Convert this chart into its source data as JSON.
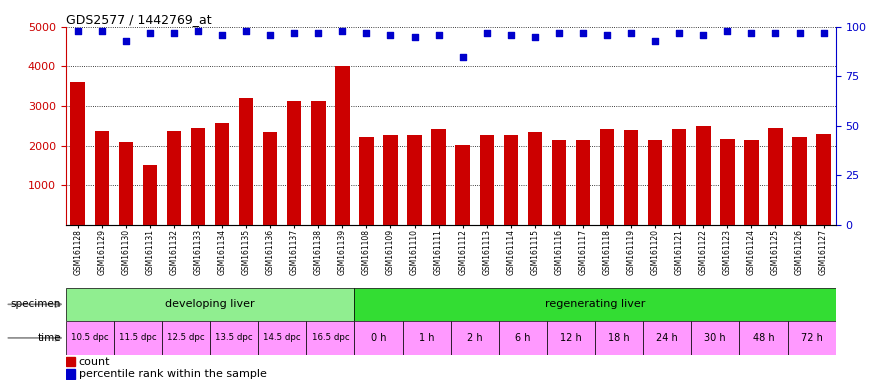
{
  "title": "GDS2577 / 1442769_at",
  "bar_values": [
    3600,
    2380,
    2080,
    1520,
    2380,
    2440,
    2560,
    3190,
    2340,
    3120,
    3120,
    4020,
    2210,
    2270,
    2270,
    2430,
    2020,
    2270,
    2270,
    2340,
    2150,
    2140,
    2410,
    2400,
    2140,
    2430,
    2490,
    2170,
    2150,
    2450,
    2220,
    2280
  ],
  "percentile_values": [
    98,
    98,
    93,
    97,
    97,
    98,
    96,
    98,
    96,
    97,
    97,
    98,
    97,
    96,
    95,
    96,
    85,
    97,
    96,
    95,
    97,
    97,
    96,
    97,
    93,
    97,
    96,
    98,
    97,
    97,
    97,
    97
  ],
  "sample_ids": [
    "GSM161128",
    "GSM161129",
    "GSM161130",
    "GSM161131",
    "GSM161132",
    "GSM161133",
    "GSM161134",
    "GSM161135",
    "GSM161136",
    "GSM161137",
    "GSM161138",
    "GSM161139",
    "GSM161108",
    "GSM161109",
    "GSM161110",
    "GSM161111",
    "GSM161112",
    "GSM161113",
    "GSM161114",
    "GSM161115",
    "GSM161116",
    "GSM161117",
    "GSM161118",
    "GSM161119",
    "GSM161120",
    "GSM161121",
    "GSM161122",
    "GSM161123",
    "GSM161124",
    "GSM161125",
    "GSM161126",
    "GSM161127"
  ],
  "specimen_groups": [
    {
      "label": "developing liver",
      "start": 0,
      "end": 12,
      "color": "#90EE90"
    },
    {
      "label": "regenerating liver",
      "start": 12,
      "end": 32,
      "color": "#33DD33"
    }
  ],
  "time_groups_developing": [
    {
      "label": "10.5 dpc",
      "start": 0,
      "end": 2
    },
    {
      "label": "11.5 dpc",
      "start": 2,
      "end": 4
    },
    {
      "label": "12.5 dpc",
      "start": 4,
      "end": 6
    },
    {
      "label": "13.5 dpc",
      "start": 6,
      "end": 8
    },
    {
      "label": "14.5 dpc",
      "start": 8,
      "end": 10
    },
    {
      "label": "16.5 dpc",
      "start": 10,
      "end": 12
    }
  ],
  "time_groups_regenerating": [
    {
      "label": "0 h",
      "start": 12,
      "end": 14
    },
    {
      "label": "1 h",
      "start": 14,
      "end": 16
    },
    {
      "label": "2 h",
      "start": 16,
      "end": 18
    },
    {
      "label": "6 h",
      "start": 18,
      "end": 20
    },
    {
      "label": "12 h",
      "start": 20,
      "end": 22
    },
    {
      "label": "18 h",
      "start": 22,
      "end": 24
    },
    {
      "label": "24 h",
      "start": 24,
      "end": 26
    },
    {
      "label": "30 h",
      "start": 26,
      "end": 28
    },
    {
      "label": "48 h",
      "start": 28,
      "end": 30
    },
    {
      "label": "72 h",
      "start": 30,
      "end": 32
    }
  ],
  "bar_color": "#CC0000",
  "dot_color": "#0000CC",
  "ylim_left": [
    0,
    5000
  ],
  "ylim_right": [
    0,
    100
  ],
  "yticks_left": [
    1000,
    2000,
    3000,
    4000,
    5000
  ],
  "yticks_right": [
    0,
    25,
    50,
    75,
    100
  ],
  "developing_color": "#90EE90",
  "regenerating_color": "#33DD33",
  "time_dev_color": "#FF99FF",
  "time_regen_color": "#FF99FF"
}
